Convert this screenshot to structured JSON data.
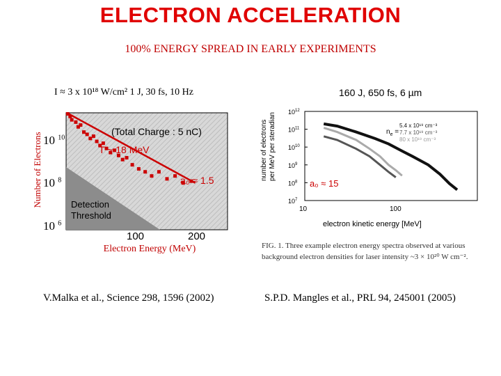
{
  "title": "ELECTRON ACCELERATION",
  "subtitle": "100% ENERGY SPREAD IN EARLY EXPERIMENTS",
  "left_panel": {
    "params": "I ≈ 3 x 10¹⁸ W/cm² 1 J,  30 fs, 10 Hz",
    "ylabel": "Number of Electrons",
    "xlabel": "Electron Energy (MeV)",
    "y_ticks": [
      {
        "base": "10",
        "exp": "10"
      },
      {
        "base": "10",
        "exp": "8"
      },
      {
        "base": "10",
        "exp": "6"
      }
    ],
    "x_ticks": [
      "100",
      "200"
    ],
    "total_charge": "(Total Charge : 5 nC)",
    "temperature": "T ~ 18 MeV",
    "a0": "a₀ ≈ 1.5",
    "threshold": "Detection\nThreshold",
    "citation": "V.Malka et al., Science 298, 1596 (2002)"
  },
  "right_panel": {
    "params": "160 J,  650 fs,  6 µm",
    "ylabel": "number of electrons\nper MeV per steradian",
    "xlabel": "electron kinetic energy [MeV]",
    "y_ticks": [
      {
        "base": "10",
        "exp": "12"
      },
      {
        "base": "10",
        "exp": "11"
      },
      {
        "base": "10",
        "exp": "10"
      },
      {
        "base": "10",
        "exp": "9"
      },
      {
        "base": "10",
        "exp": "8"
      },
      {
        "base": "10",
        "exp": "7"
      }
    ],
    "x_ticks": [
      "10",
      "100"
    ],
    "legend_label": "n",
    "legend_sub": "e",
    "legend_values": [
      "5.4 x 10¹⁹ cm⁻³",
      "7.7 x 10¹⁹ cm⁻³",
      "80 x 10¹⁹ cm⁻³"
    ],
    "a0": "a₀ ≈ 15",
    "fig_caption": "FIG. 1.   Three example electron energy spectra observed at various background electron densities for laser intensity ~3 × 10²⁰ W cm⁻².",
    "citation": "S.P.D. Mangles et al., PRL 94, 245001 (2005)"
  },
  "colors": {
    "title": "#e00000",
    "accent": "#cc0000",
    "threshold": "#8c8c8c"
  },
  "chart_data": [
    {
      "type": "scatter",
      "title": "",
      "xlabel": "Electron Energy (MeV)",
      "ylabel": "Number of Electrons",
      "ylog": true,
      "xlim": [
        40,
        240
      ],
      "ylim": [
        100000,
        10000000000
      ],
      "series": [
        {
          "points": [
            [
              42,
              9000000000.0
            ],
            [
              45,
              7000000000.0
            ],
            [
              47,
              5000000000.0
            ],
            [
              52,
              4000000000.0
            ],
            [
              55,
              2500000000.0
            ],
            [
              58,
              3000000000.0
            ],
            [
              62,
              1500000000.0
            ],
            [
              66,
              1200000000.0
            ],
            [
              70,
              800000000.0
            ],
            [
              74,
              1000000000.0
            ],
            [
              78,
              600000000.0
            ],
            [
              82,
              400000000.0
            ],
            [
              86,
              500000000.0
            ],
            [
              90,
              300000000.0
            ],
            [
              95,
              200000000.0
            ],
            [
              100,
              250000000.0
            ],
            [
              105,
              150000000.0
            ],
            [
              110,
              100000000.0
            ],
            [
              115,
              120000000.0
            ],
            [
              122,
              60000000.0
            ],
            [
              130,
              40000000.0
            ],
            [
              138,
              30000000.0
            ],
            [
              146,
              20000000.0
            ],
            [
              155,
              30000000.0
            ],
            [
              165,
              15000000.0
            ],
            [
              175,
              20000000.0
            ],
            [
              185,
              10000000.0
            ],
            [
              195,
              12000000.0
            ]
          ]
        },
        {
          "points": [
            [
              42,
              9500000000.0
            ],
            [
              200,
              10000000.0
            ]
          ]
        }
      ]
    },
    {
      "type": "line",
      "title": "",
      "xlabel": "electron kinetic energy [MeV]",
      "ylabel": "number of electrons per MeV per steradian",
      "xlog": true,
      "ylog": true,
      "xlim": [
        10,
        400
      ],
      "ylim": [
        10000000,
        1000000000000
      ],
      "series": [
        {
          "name": "5.4 x 10¹⁹ cm⁻³",
          "color": "#111111",
          "points": [
            [
              15,
              200000000000.0
            ],
            [
              20,
              150000000000.0
            ],
            [
              30,
              70000000000.0
            ],
            [
              45,
              30000000000.0
            ],
            [
              60,
              15000000000.0
            ],
            [
              80,
              6000000000.0
            ],
            [
              100,
              3000000000.0
            ],
            [
              140,
              1000000000.0
            ],
            [
              180,
              300000000.0
            ],
            [
              220,
              90000000.0
            ],
            [
              260,
              40000000.0
            ]
          ]
        },
        {
          "name": "7.7 x 10¹⁹ cm⁻³",
          "color": "#aaaaaa",
          "points": [
            [
              15,
              120000000000.0
            ],
            [
              20,
              70000000000.0
            ],
            [
              30,
              25000000000.0
            ],
            [
              40,
              8000000000.0
            ],
            [
              50,
              3000000000.0
            ],
            [
              60,
              1000000000.0
            ],
            [
              70,
              500000000.0
            ],
            [
              80,
              250000000.0
            ]
          ]
        },
        {
          "name": "80 x 10¹⁹ cm⁻³",
          "color": "#555555",
          "points": [
            [
              15,
              40000000000.0
            ],
            [
              20,
              25000000000.0
            ],
            [
              30,
              8000000000.0
            ],
            [
              40,
              3000000000.0
            ],
            [
              50,
              1000000000.0
            ],
            [
              60,
              400000000.0
            ],
            [
              70,
              200000000.0
            ]
          ]
        }
      ]
    }
  ]
}
